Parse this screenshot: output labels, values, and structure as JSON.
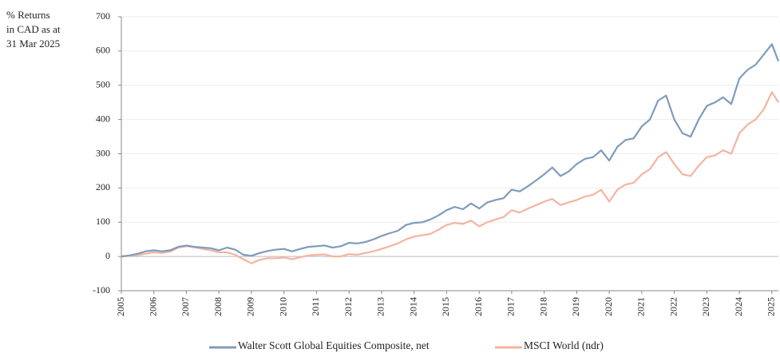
{
  "chart_data": {
    "type": "line",
    "ylabel": [
      "% Returns",
      "in CAD as at",
      "31 Mar 2025"
    ],
    "x": [
      2005,
      2005.25,
      2005.5,
      2005.75,
      2006,
      2006.25,
      2006.5,
      2006.75,
      2007,
      2007.25,
      2007.5,
      2007.75,
      2008,
      2008.25,
      2008.5,
      2008.75,
      2009,
      2009.25,
      2009.5,
      2009.75,
      2010,
      2010.25,
      2010.5,
      2010.75,
      2011,
      2011.25,
      2011.5,
      2011.75,
      2012,
      2012.25,
      2012.5,
      2012.75,
      2013,
      2013.25,
      2013.5,
      2013.75,
      2014,
      2014.25,
      2014.5,
      2014.75,
      2015,
      2015.25,
      2015.5,
      2015.75,
      2016,
      2016.25,
      2016.5,
      2016.75,
      2017,
      2017.25,
      2017.5,
      2017.75,
      2018,
      2018.25,
      2018.5,
      2018.75,
      2019,
      2019.25,
      2019.5,
      2019.75,
      2020,
      2020.25,
      2020.5,
      2020.75,
      2021,
      2021.25,
      2021.5,
      2021.75,
      2022,
      2022.25,
      2022.5,
      2022.75,
      2023,
      2023.25,
      2023.5,
      2023.75,
      2024,
      2024.25,
      2024.5,
      2024.75,
      2025,
      2025.2
    ],
    "series": [
      {
        "name": "Walter Scott Global Equities Composite, net",
        "color": "#7f9cbb",
        "values": [
          0,
          3,
          8,
          15,
          18,
          15,
          18,
          28,
          32,
          28,
          26,
          24,
          18,
          26,
          20,
          5,
          2,
          10,
          16,
          20,
          22,
          15,
          22,
          28,
          30,
          32,
          26,
          30,
          40,
          38,
          42,
          50,
          60,
          68,
          75,
          92,
          98,
          100,
          108,
          120,
          135,
          145,
          138,
          155,
          140,
          158,
          165,
          170,
          195,
          190,
          205,
          222,
          240,
          260,
          235,
          248,
          270,
          285,
          290,
          310,
          280,
          320,
          340,
          345,
          380,
          400,
          455,
          470,
          400,
          360,
          350,
          400,
          440,
          450,
          465,
          445,
          520,
          545,
          560,
          590,
          620,
          570
        ]
      },
      {
        "name": "MSCI World (ndr)",
        "color": "#f4b4a0",
        "values": [
          0,
          2,
          4,
          8,
          12,
          10,
          14,
          26,
          30,
          27,
          22,
          18,
          12,
          12,
          5,
          -8,
          -20,
          -10,
          -5,
          -5,
          -3,
          -8,
          -2,
          3,
          5,
          6,
          0,
          0,
          7,
          5,
          10,
          15,
          22,
          30,
          38,
          50,
          58,
          62,
          66,
          78,
          92,
          98,
          95,
          105,
          88,
          100,
          108,
          115,
          135,
          128,
          140,
          150,
          160,
          168,
          150,
          158,
          165,
          175,
          180,
          195,
          160,
          195,
          210,
          215,
          240,
          255,
          290,
          305,
          270,
          240,
          235,
          265,
          290,
          295,
          310,
          300,
          360,
          385,
          400,
          430,
          480,
          450
        ]
      }
    ],
    "xlim": [
      2005,
      2025.2
    ],
    "xticks": [
      2005,
      2006,
      2007,
      2008,
      2009,
      2010,
      2011,
      2012,
      2013,
      2014,
      2015,
      2016,
      2017,
      2018,
      2019,
      2020,
      2021,
      2022,
      2023,
      2024,
      2025
    ],
    "ylim": [
      -100,
      700
    ],
    "yticks": [
      -100,
      0,
      100,
      200,
      300,
      400,
      500,
      600,
      700
    ],
    "grid": true
  }
}
